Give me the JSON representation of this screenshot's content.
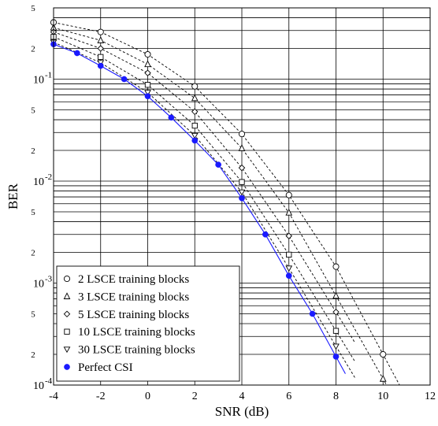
{
  "chart_data": {
    "type": "line",
    "title": "",
    "xlabel": "SNR (dB)",
    "ylabel": "BER",
    "xlim": [
      -4,
      12
    ],
    "ylim": [
      0.0001,
      0.5
    ],
    "yscale": "log",
    "grid": true,
    "legend_position": "bottom-left",
    "x_ticks": [
      "-4",
      "-2",
      "0",
      "2",
      "4",
      "6",
      "8",
      "10",
      "12"
    ],
    "y_major_ticks": [
      {
        "value": 0.0001,
        "base": "10",
        "exp": "-4"
      },
      {
        "value": 0.001,
        "base": "10",
        "exp": "-3"
      },
      {
        "value": 0.01,
        "base": "10",
        "exp": "-2"
      },
      {
        "value": 0.1,
        "base": "10",
        "exp": "-1"
      }
    ],
    "y_minor_ticks": [
      {
        "value": 0.0002,
        "label": "2"
      },
      {
        "value": 0.0005,
        "label": "5"
      },
      {
        "value": 0.002,
        "label": "2"
      },
      {
        "value": 0.005,
        "label": "5"
      },
      {
        "value": 0.02,
        "label": "2"
      },
      {
        "value": 0.05,
        "label": "5"
      },
      {
        "value": 0.2,
        "label": "2"
      },
      {
        "value": 0.5,
        "label": "5"
      }
    ],
    "series": [
      {
        "name": "2 LSCE training blocks",
        "marker": "circle",
        "color": "#000000",
        "style": "dashed",
        "x": [
          -4,
          -2,
          0,
          2,
          4,
          6,
          8,
          10
        ],
        "y": [
          0.36,
          0.29,
          0.175,
          0.085,
          0.029,
          0.0073,
          0.00145,
          0.0002
        ]
      },
      {
        "name": "3 LSCE training blocks",
        "marker": "triangle",
        "color": "#000000",
        "style": "dashed",
        "x": [
          -4,
          -2,
          0,
          2,
          4,
          6,
          8,
          10
        ],
        "y": [
          0.32,
          0.24,
          0.14,
          0.065,
          0.021,
          0.0049,
          0.00075,
          0.000115
        ]
      },
      {
        "name": "5 LSCE training blocks",
        "marker": "diamond",
        "color": "#000000",
        "style": "dashed",
        "x": [
          -4,
          -2,
          0,
          2,
          4,
          6,
          8
        ],
        "y": [
          0.29,
          0.2,
          0.115,
          0.048,
          0.0135,
          0.0029,
          0.00052
        ]
      },
      {
        "name": "10 LSCE training blocks",
        "marker": "square",
        "color": "#000000",
        "style": "dashed",
        "x": [
          -4,
          -2,
          0,
          2,
          4,
          6,
          8
        ],
        "y": [
          0.26,
          0.165,
          0.088,
          0.035,
          0.0098,
          0.0019,
          0.00034
        ]
      },
      {
        "name": "30 LSCE training blocks",
        "marker": "triangle-down",
        "color": "#000000",
        "style": "dashed",
        "x": [
          -4,
          -2,
          0,
          2,
          4,
          6,
          8
        ],
        "y": [
          0.23,
          0.145,
          0.074,
          0.028,
          0.0078,
          0.0014,
          0.00024
        ]
      },
      {
        "name": "Perfect CSI",
        "marker": "filled-circle",
        "color": "#1a1aff",
        "style": "solid",
        "x": [
          -4,
          -3,
          -2,
          -1,
          0,
          1,
          2,
          3,
          4,
          5,
          6,
          7,
          8
        ],
        "y": [
          0.22,
          0.18,
          0.135,
          0.1,
          0.068,
          0.042,
          0.025,
          0.0145,
          0.0068,
          0.003,
          0.00118,
          0.0005,
          0.00019
        ]
      }
    ]
  }
}
